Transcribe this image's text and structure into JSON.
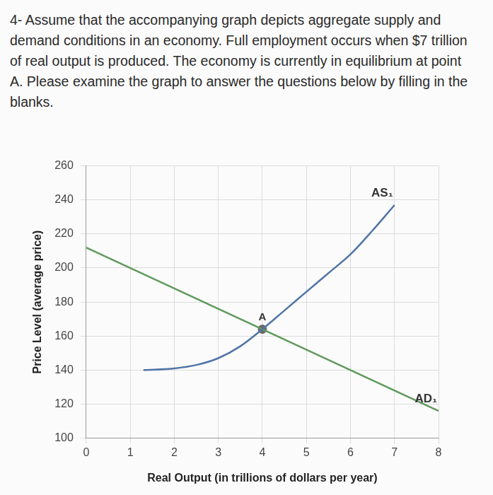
{
  "question": "4- Assume that the accompanying graph depicts aggregate supply and demand conditions in an economy. Full employment occurs when $7 trillion of real output is produced. The economy is currently in equilibrium at point A. Please examine the graph to answer the questions below by filling in the blanks.",
  "chart_data": {
    "type": "line",
    "x_label": "Real Output (in trillions of dollars per year)",
    "y_label": "Price Level (average price)",
    "xlim": [
      0,
      8
    ],
    "xticks": [
      0,
      1,
      2,
      3,
      4,
      5,
      6,
      7,
      8
    ],
    "ylim": [
      100,
      260
    ],
    "yticks": [
      100,
      120,
      140,
      160,
      180,
      200,
      220,
      240,
      260
    ],
    "grid": true,
    "series": [
      {
        "name": "AS₁",
        "color": "#4f74a6",
        "x": [
          1.3,
          2,
          2.5,
          3,
          3.5,
          4,
          4.5,
          5,
          5.5,
          6,
          6.5,
          7
        ],
        "values": [
          140,
          141,
          143,
          147,
          154,
          164,
          175,
          186,
          197,
          208,
          222,
          237
        ]
      },
      {
        "name": "AD₁",
        "color": "#5f9a5c",
        "x": [
          0,
          8
        ],
        "values": [
          212,
          116
        ]
      }
    ],
    "annotations": [
      {
        "text": "A",
        "x": 4,
        "y": 164,
        "color": "#6a6a6a",
        "marker": "circle"
      }
    ]
  }
}
